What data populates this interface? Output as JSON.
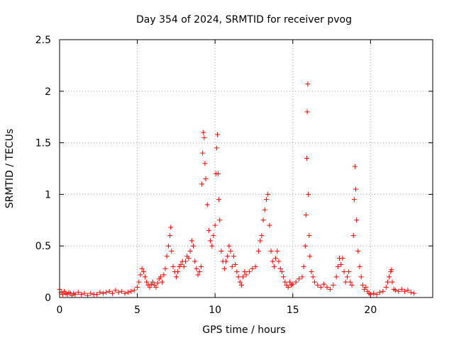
{
  "chart_data": {
    "type": "scatter",
    "title": "Day 354 of 2024, SRMTID for receiver pvog",
    "xlabel": "GPS time / hours",
    "ylabel": "SRMTID / TECUs",
    "xlim": [
      0,
      24
    ],
    "ylim": [
      0,
      2.5
    ],
    "xticks": [
      0,
      5,
      10,
      15,
      20
    ],
    "yticks": [
      0,
      0.5,
      1,
      1.5,
      2,
      2.5
    ],
    "xtick_labels": [
      "0",
      "5",
      "10",
      "15",
      "20"
    ],
    "ytick_labels": [
      "0",
      "0.5",
      "1",
      "1.5",
      "2",
      "2.5"
    ],
    "grid": true,
    "marker": "plus",
    "color": "#ff0000",
    "series": [
      {
        "name": "SRMTID",
        "points": [
          [
            0.0,
            0.08
          ],
          [
            0.1,
            0.05
          ],
          [
            0.2,
            0.03
          ],
          [
            0.3,
            0.06
          ],
          [
            0.4,
            0.04
          ],
          [
            0.5,
            0.03
          ],
          [
            0.6,
            0.05
          ],
          [
            0.7,
            0.04
          ],
          [
            0.8,
            0.02
          ],
          [
            0.9,
            0.04
          ],
          [
            1.0,
            0.03
          ],
          [
            1.2,
            0.05
          ],
          [
            1.4,
            0.03
          ],
          [
            1.6,
            0.04
          ],
          [
            1.8,
            0.02
          ],
          [
            2.0,
            0.04
          ],
          [
            2.2,
            0.03
          ],
          [
            2.4,
            0.03
          ],
          [
            2.6,
            0.05
          ],
          [
            2.8,
            0.04
          ],
          [
            3.0,
            0.05
          ],
          [
            3.2,
            0.06
          ],
          [
            3.4,
            0.04
          ],
          [
            3.6,
            0.07
          ],
          [
            3.8,
            0.05
          ],
          [
            4.0,
            0.06
          ],
          [
            4.2,
            0.04
          ],
          [
            4.4,
            0.05
          ],
          [
            4.6,
            0.06
          ],
          [
            4.8,
            0.07
          ],
          [
            5.0,
            0.1
          ],
          [
            5.1,
            0.15
          ],
          [
            5.2,
            0.22
          ],
          [
            5.3,
            0.28
          ],
          [
            5.4,
            0.25
          ],
          [
            5.5,
            0.2
          ],
          [
            5.6,
            0.15
          ],
          [
            5.7,
            0.12
          ],
          [
            5.8,
            0.1
          ],
          [
            5.9,
            0.13
          ],
          [
            6.0,
            0.15
          ],
          [
            6.1,
            0.12
          ],
          [
            6.2,
            0.1
          ],
          [
            6.3,
            0.14
          ],
          [
            6.4,
            0.18
          ],
          [
            6.5,
            0.2
          ],
          [
            6.6,
            0.15
          ],
          [
            6.7,
            0.22
          ],
          [
            6.8,
            0.28
          ],
          [
            6.9,
            0.4
          ],
          [
            7.0,
            0.5
          ],
          [
            7.1,
            0.6
          ],
          [
            7.15,
            0.68
          ],
          [
            7.2,
            0.45
          ],
          [
            7.3,
            0.3
          ],
          [
            7.4,
            0.25
          ],
          [
            7.5,
            0.2
          ],
          [
            7.6,
            0.25
          ],
          [
            7.7,
            0.3
          ],
          [
            7.8,
            0.32
          ],
          [
            7.9,
            0.35
          ],
          [
            8.0,
            0.3
          ],
          [
            8.1,
            0.35
          ],
          [
            8.2,
            0.4
          ],
          [
            8.3,
            0.38
          ],
          [
            8.4,
            0.45
          ],
          [
            8.5,
            0.55
          ],
          [
            8.6,
            0.5
          ],
          [
            8.7,
            0.35
          ],
          [
            8.8,
            0.28
          ],
          [
            8.9,
            0.22
          ],
          [
            9.0,
            0.25
          ],
          [
            9.1,
            0.3
          ],
          [
            9.15,
            1.1
          ],
          [
            9.2,
            1.4
          ],
          [
            9.25,
            1.6
          ],
          [
            9.3,
            1.55
          ],
          [
            9.35,
            1.3
          ],
          [
            9.4,
            1.15
          ],
          [
            9.5,
            0.9
          ],
          [
            9.6,
            0.65
          ],
          [
            9.7,
            0.55
          ],
          [
            9.8,
            0.5
          ],
          [
            9.9,
            0.6
          ],
          [
            10.0,
            0.7
          ],
          [
            10.05,
            1.2
          ],
          [
            10.1,
            1.45
          ],
          [
            10.15,
            1.58
          ],
          [
            10.2,
            1.2
          ],
          [
            10.25,
            0.95
          ],
          [
            10.3,
            0.75
          ],
          [
            10.4,
            0.45
          ],
          [
            10.5,
            0.35
          ],
          [
            10.6,
            0.28
          ],
          [
            10.7,
            0.35
          ],
          [
            10.8,
            0.4
          ],
          [
            10.9,
            0.5
          ],
          [
            11.0,
            0.45
          ],
          [
            11.1,
            0.3
          ],
          [
            11.2,
            0.4
          ],
          [
            11.3,
            0.32
          ],
          [
            11.4,
            0.25
          ],
          [
            11.5,
            0.2
          ],
          [
            11.6,
            0.15
          ],
          [
            11.7,
            0.12
          ],
          [
            11.8,
            0.2
          ],
          [
            11.9,
            0.25
          ],
          [
            12.0,
            0.22
          ],
          [
            12.2,
            0.25
          ],
          [
            12.4,
            0.28
          ],
          [
            12.6,
            0.3
          ],
          [
            12.8,
            0.45
          ],
          [
            12.9,
            0.55
          ],
          [
            13.0,
            0.6
          ],
          [
            13.1,
            0.75
          ],
          [
            13.2,
            0.85
          ],
          [
            13.3,
            0.95
          ],
          [
            13.4,
            1.0
          ],
          [
            13.5,
            0.7
          ],
          [
            13.6,
            0.45
          ],
          [
            13.7,
            0.35
          ],
          [
            13.8,
            0.3
          ],
          [
            13.9,
            0.38
          ],
          [
            14.0,
            0.45
          ],
          [
            14.1,
            0.35
          ],
          [
            14.2,
            0.28
          ],
          [
            14.3,
            0.25
          ],
          [
            14.4,
            0.2
          ],
          [
            14.5,
            0.15
          ],
          [
            14.6,
            0.12
          ],
          [
            14.7,
            0.1
          ],
          [
            14.8,
            0.15
          ],
          [
            14.9,
            0.12
          ],
          [
            15.0,
            0.13
          ],
          [
            15.2,
            0.15
          ],
          [
            15.4,
            0.18
          ],
          [
            15.6,
            0.2
          ],
          [
            15.7,
            0.3
          ],
          [
            15.8,
            0.5
          ],
          [
            15.85,
            0.8
          ],
          [
            15.9,
            1.35
          ],
          [
            15.93,
            1.8
          ],
          [
            15.96,
            2.07
          ],
          [
            16.0,
            1.0
          ],
          [
            16.05,
            0.6
          ],
          [
            16.1,
            0.4
          ],
          [
            16.2,
            0.25
          ],
          [
            16.3,
            0.2
          ],
          [
            16.4,
            0.15
          ],
          [
            16.6,
            0.12
          ],
          [
            16.8,
            0.1
          ],
          [
            17.0,
            0.13
          ],
          [
            17.2,
            0.1
          ],
          [
            17.4,
            0.08
          ],
          [
            17.6,
            0.12
          ],
          [
            17.8,
            0.2
          ],
          [
            17.9,
            0.3
          ],
          [
            18.0,
            0.38
          ],
          [
            18.1,
            0.32
          ],
          [
            18.2,
            0.38
          ],
          [
            18.3,
            0.25
          ],
          [
            18.4,
            0.15
          ],
          [
            18.5,
            0.2
          ],
          [
            18.6,
            0.25
          ],
          [
            18.7,
            0.15
          ],
          [
            18.8,
            0.12
          ],
          [
            18.9,
            0.6
          ],
          [
            18.95,
            0.95
          ],
          [
            19.0,
            1.27
          ],
          [
            19.05,
            1.05
          ],
          [
            19.1,
            0.75
          ],
          [
            19.2,
            0.45
          ],
          [
            19.3,
            0.3
          ],
          [
            19.4,
            0.2
          ],
          [
            19.5,
            0.12
          ],
          [
            19.6,
            0.08
          ],
          [
            19.7,
            0.1
          ],
          [
            19.8,
            0.06
          ],
          [
            19.9,
            0.04
          ],
          [
            20.0,
            0.03
          ],
          [
            20.2,
            0.04
          ],
          [
            20.4,
            0.03
          ],
          [
            20.6,
            0.05
          ],
          [
            20.8,
            0.06
          ],
          [
            21.0,
            0.1
          ],
          [
            21.1,
            0.15
          ],
          [
            21.2,
            0.2
          ],
          [
            21.3,
            0.25
          ],
          [
            21.35,
            0.27
          ],
          [
            21.4,
            0.15
          ],
          [
            21.5,
            0.08
          ],
          [
            21.6,
            0.07
          ],
          [
            21.8,
            0.06
          ],
          [
            22.0,
            0.08
          ],
          [
            22.2,
            0.06
          ],
          [
            22.4,
            0.07
          ],
          [
            22.6,
            0.05
          ],
          [
            22.8,
            0.04
          ]
        ]
      }
    ]
  }
}
